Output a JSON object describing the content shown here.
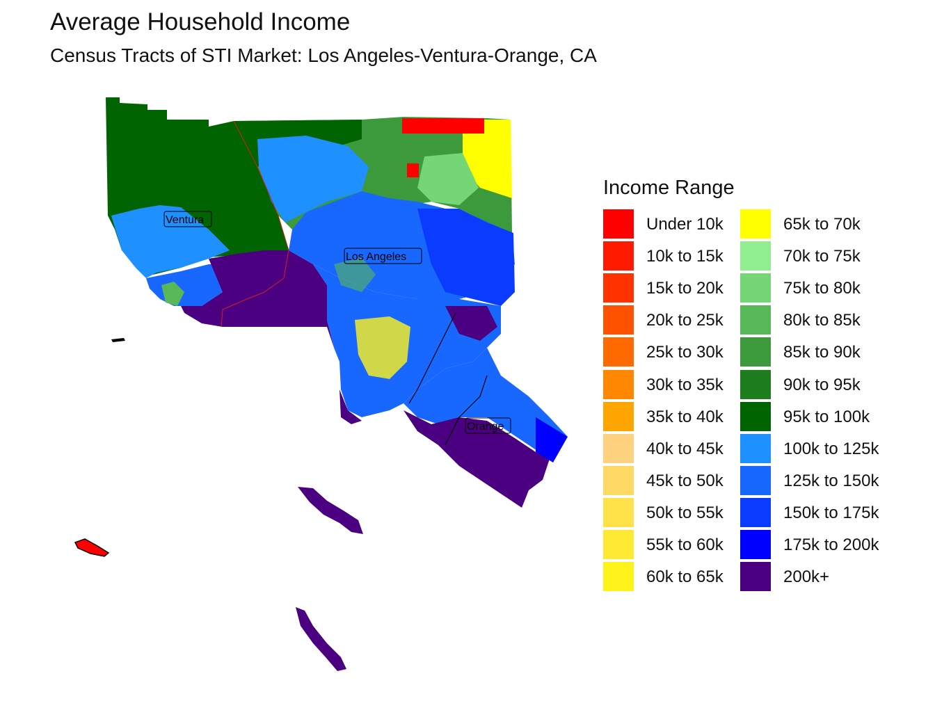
{
  "title": "Average Household Income",
  "subtitle": "Census Tracts of STI Market: Los Angeles-Ventura-Orange, CA",
  "legend": {
    "title": "Income Range",
    "items": [
      {
        "label": "Under 10k",
        "color": "#FF0000"
      },
      {
        "label": "10k to 15k",
        "color": "#FF1A00"
      },
      {
        "label": "15k to 20k",
        "color": "#FF3300"
      },
      {
        "label": "20k to 25k",
        "color": "#FF5200"
      },
      {
        "label": "25k to 30k",
        "color": "#FF6A00"
      },
      {
        "label": "30k to 35k",
        "color": "#FF8800"
      },
      {
        "label": "35k to 40k",
        "color": "#FFA500"
      },
      {
        "label": "40k to 45k",
        "color": "#FFD27F"
      },
      {
        "label": "45k to 50k",
        "color": "#FFD966"
      },
      {
        "label": "50k to 55k",
        "color": "#FFE14A"
      },
      {
        "label": "55k to 60k",
        "color": "#FFEA33"
      },
      {
        "label": "60k to 65k",
        "color": "#FFF21A"
      },
      {
        "label": "65k to 70k",
        "color": "#FFFF00"
      },
      {
        "label": "70k to 75k",
        "color": "#90EE90"
      },
      {
        "label": "75k to 80k",
        "color": "#74D674"
      },
      {
        "label": "80k to 85k",
        "color": "#58B858"
      },
      {
        "label": "85k to 90k",
        "color": "#3C9A3C"
      },
      {
        "label": "90k to 95k",
        "color": "#1E7D1E"
      },
      {
        "label": "95k to 100k",
        "color": "#006400"
      },
      {
        "label": "100k to 125k",
        "color": "#1E90FF"
      },
      {
        "label": "125k to 150k",
        "color": "#1868FF"
      },
      {
        "label": "150k to 175k",
        "color": "#0A3CFF"
      },
      {
        "label": "175k to 200k",
        "color": "#0000FF"
      },
      {
        "label": "200k+",
        "color": "#4B0082"
      }
    ]
  },
  "places": [
    {
      "name": "Ventura"
    },
    {
      "name": "Los Angeles"
    },
    {
      "name": "Orange"
    }
  ]
}
